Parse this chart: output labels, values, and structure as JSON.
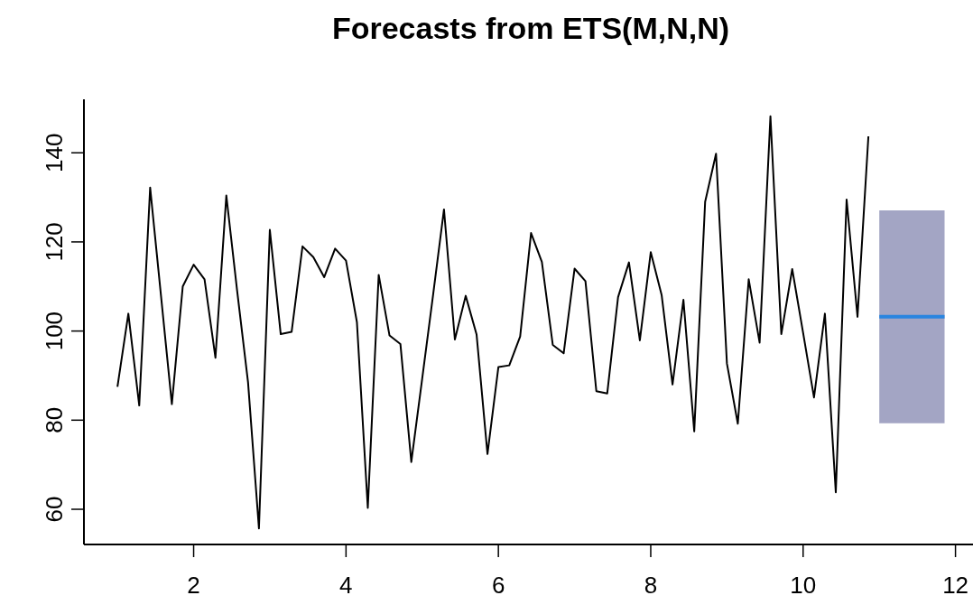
{
  "chart_data": {
    "type": "line",
    "title": "Forecasts from ETS(M,N,N)",
    "xlim": [
      0.56,
      12.23
    ],
    "xticks": [
      2,
      4,
      6,
      8,
      10,
      12
    ],
    "ylim": [
      52.1,
      152
    ],
    "yticks": [
      60,
      80,
      100,
      120,
      140
    ],
    "series": [
      {
        "color": "#000000",
        "x": [
          1,
          1.143,
          1.286,
          1.429,
          1.571,
          1.714,
          1.857,
          2,
          2.143,
          2.286,
          2.429,
          2.571,
          2.714,
          2.857,
          3,
          3.143,
          3.286,
          3.429,
          3.571,
          3.714,
          3.857,
          4,
          4.143,
          4.286,
          4.429,
          4.571,
          4.714,
          4.857,
          5,
          5.143,
          5.286,
          5.429,
          5.571,
          5.714,
          5.857,
          6,
          6.143,
          6.286,
          6.429,
          6.571,
          6.714,
          6.857,
          7,
          7.143,
          7.286,
          7.429,
          7.571,
          7.714,
          7.857,
          8,
          8.143,
          8.286,
          8.429,
          8.571,
          8.714,
          8.857,
          9,
          9.143,
          9.286,
          9.429,
          9.571,
          9.714,
          9.857,
          10,
          10.143,
          10.286,
          10.429,
          10.571,
          10.714,
          10.857
        ],
        "values": [
          87.5,
          103.9,
          83.3,
          132.2,
          108,
          83.6,
          110,
          114.9,
          111.6,
          94,
          130.4,
          109,
          88.5,
          55.7,
          122.7,
          99.3,
          99.8,
          119,
          116.6,
          112.1,
          118.5,
          115.8,
          102,
          60.3,
          112.6,
          99,
          97.1,
          70.6,
          89.3,
          108.1,
          127.3,
          98.1,
          107.9,
          99.2,
          72.4,
          91.9,
          92.3,
          98.8,
          122,
          115.5,
          96.9,
          95,
          114,
          111.2,
          86.5,
          86,
          107.6,
          115.4,
          97.9,
          117.7,
          108.1,
          88,
          107,
          77.5,
          129,
          139.8,
          92.7,
          79.2,
          111.6,
          97.4,
          148.2,
          99.3,
          113.9,
          99.6,
          85.1,
          103.9,
          63.8,
          129.5,
          103.2,
          143.7
        ]
      },
      {
        "color": "#2a85e0",
        "x": [
          11,
          11.143,
          11.286,
          11.429,
          11.571,
          11.714,
          11.857
        ],
        "values": [
          103.2,
          103.2,
          103.2,
          103.2,
          103.2,
          103.2,
          103.2
        ],
        "lower": [
          79.3,
          79.3,
          79.3,
          79.3,
          79.3,
          79.3,
          79.3
        ],
        "upper": [
          127.1,
          127.1,
          127.1,
          127.1,
          127.1,
          127.1,
          127.1
        ]
      }
    ]
  }
}
